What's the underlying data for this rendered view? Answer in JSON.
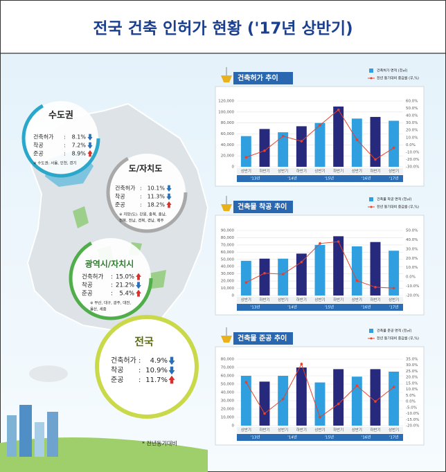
{
  "header": {
    "title": "전국 건축 인허가 현황 ('17년 상반기)"
  },
  "regions": [
    {
      "title": "수도권",
      "color": "#2aa7c9",
      "rows": [
        {
          "label": "건축허가",
          "sep": ":",
          "value": "8.1%",
          "trend": "down"
        },
        {
          "label": "착공",
          "sep": ":",
          "value": "7.2%",
          "trend": "down"
        },
        {
          "label": "준공",
          "sep": ":",
          "value": "8.9%",
          "trend": "up"
        }
      ],
      "note": [
        "※ 수도권: 서울, 인천, 경기"
      ]
    },
    {
      "title": "도/자치도",
      "color": "#a9a9a9",
      "rows": [
        {
          "label": "건축허가",
          "sep": ":",
          "value": "10.1%",
          "trend": "down"
        },
        {
          "label": "착공",
          "sep": ":",
          "value": "11.3%",
          "trend": "down"
        },
        {
          "label": "준공",
          "sep": ":",
          "value": "18.2%",
          "trend": "up"
        }
      ],
      "note": [
        "※ 지방(도): 강원, 충북, 충남,",
        "전북, 전남, 경북, 경남, 제주"
      ]
    },
    {
      "title": "광역시/자치시",
      "color": "#4fae4a",
      "rows": [
        {
          "label": "건축허가",
          "sep": ":",
          "value": "15.0%",
          "trend": "up"
        },
        {
          "label": "착공",
          "sep": ":",
          "value": "21.2%",
          "trend": "down"
        },
        {
          "label": "준공",
          "sep": ":",
          "value": "5.4%",
          "trend": "up"
        }
      ],
      "note": [
        "※ 부산, 대구, 광주, 대전,",
        "울산, 세종"
      ]
    },
    {
      "title": "전국",
      "color": "#c9d94a",
      "rows": [
        {
          "label": "건축허가",
          "sep": ":",
          "value": "4.9%",
          "trend": "down"
        },
        {
          "label": "착공",
          "sep": ":",
          "value": "10.9%",
          "trend": "down"
        },
        {
          "label": "준공",
          "sep": ":",
          "value": "11.7%",
          "trend": "up"
        }
      ],
      "note": []
    }
  ],
  "footnote": "* 전년동기대비",
  "chart_data": [
    {
      "type": "combo",
      "title": "건축허가 추이",
      "categories": [
        "상반기",
        "하반기",
        "상반기",
        "하반기",
        "상반기",
        "하반기",
        "상반기",
        "하반기",
        "상반기"
      ],
      "years": [
        "'13년",
        null,
        "'14년",
        null,
        "'15년",
        null,
        "'16년",
        null,
        "'17년"
      ],
      "series": [
        {
          "name": "건축허가 면적 (천㎡)",
          "type": "bar",
          "colors": [
            "#2f9fe0",
            "#27297d"
          ],
          "values": [
            56000,
            69000,
            63000,
            74000,
            80000,
            110000,
            88000,
            91000,
            84000
          ]
        },
        {
          "name": "전년 동기대비 증감률 (우,%)",
          "type": "line",
          "axis": "y2",
          "color": "#e8402b",
          "values": [
            -17,
            -8,
            12,
            5,
            27,
            48,
            7,
            -20,
            -4
          ]
        }
      ],
      "ylim": [
        0,
        120000
      ],
      "yticks": [
        0,
        {
          "value": 20000,
          "label": "20,000"
        },
        {
          "value": 40000,
          "label": "40,000"
        },
        {
          "value": 60000,
          "label": "60,000"
        },
        {
          "value": 80000,
          "label": "80,000"
        },
        {
          "value": 100000,
          "label": "100,000"
        },
        {
          "value": 120000,
          "label": "120,000"
        }
      ],
      "y2lim": [
        -30,
        60
      ],
      "y2ticks": [
        {
          "value": -30,
          "label": "-30.0%"
        },
        {
          "value": -20,
          "label": "-20.0%"
        },
        {
          "value": -10,
          "label": "-10.0%"
        },
        {
          "value": 0,
          "label": "0.0%"
        },
        {
          "value": 10,
          "label": "10.0%"
        },
        {
          "value": 20,
          "label": "20.0%"
        },
        {
          "value": 30,
          "label": "30.0%"
        },
        {
          "value": 40,
          "label": "40.0%"
        },
        {
          "value": 50,
          "label": "50.0%"
        },
        {
          "value": 60,
          "label": "60.0%"
        }
      ],
      "grid": true
    },
    {
      "type": "combo",
      "title": "건축물 착공 추이",
      "categories": [
        "상반기",
        "하반기",
        "상반기",
        "하반기",
        "상반기",
        "하반기",
        "상반기",
        "하반기",
        "상반기"
      ],
      "years": [
        "'13년",
        null,
        "'14년",
        null,
        "'15년",
        null,
        "'16년",
        null,
        "'17년"
      ],
      "series": [
        {
          "name": "건축물 착공 면적 (천㎡)",
          "type": "bar",
          "colors": [
            "#2f9fe0",
            "#27297d"
          ],
          "values": [
            48000,
            51000,
            51000,
            58000,
            70000,
            82000,
            68000,
            74000,
            62000
          ]
        },
        {
          "name": "전년 동기대비 증감률 (우,%)",
          "type": "line",
          "axis": "y2",
          "color": "#e8402b",
          "values": [
            -6,
            4,
            3,
            16,
            36,
            38,
            -4,
            -11,
            -12
          ]
        }
      ],
      "ylim": [
        0,
        90000
      ],
      "yticks": [
        0,
        {
          "value": 10000,
          "label": "10,000"
        },
        {
          "value": 20000,
          "label": "20,000"
        },
        {
          "value": 30000,
          "label": "30,000"
        },
        {
          "value": 40000,
          "label": "40,000"
        },
        {
          "value": 50000,
          "label": "50,000"
        },
        {
          "value": 60000,
          "label": "60,000"
        },
        {
          "value": 70000,
          "label": "70,000"
        },
        {
          "value": 80000,
          "label": "80,000"
        },
        {
          "value": 90000,
          "label": "90,000"
        }
      ],
      "y2lim": [
        -20,
        50
      ],
      "y2ticks": [
        {
          "value": -20,
          "label": "-20.0%"
        },
        {
          "value": -10,
          "label": "-10.0%"
        },
        {
          "value": 0,
          "label": "0.0%"
        },
        {
          "value": 10,
          "label": "10.0%"
        },
        {
          "value": 20,
          "label": "20.0%"
        },
        {
          "value": 30,
          "label": "30.0%"
        },
        {
          "value": 40,
          "label": "40.0%"
        },
        {
          "value": 50,
          "label": "50.0%"
        }
      ],
      "grid": true
    },
    {
      "type": "combo",
      "title": "건축물 준공 추이",
      "categories": [
        "상반기",
        "하반기",
        "상반기",
        "하반기",
        "상반기",
        "하반기",
        "상반기",
        "하반기",
        "상반기"
      ],
      "years": [
        "'13년",
        null,
        "'14년",
        null,
        "'15년",
        null,
        "'16년",
        null,
        "'17년"
      ],
      "series": [
        {
          "name": "건축물 준공 면적 (천㎡)",
          "type": "bar",
          "colors": [
            "#2f9fe0",
            "#27297d"
          ],
          "values": [
            60000,
            53000,
            60000,
            70000,
            52000,
            68000,
            59000,
            68000,
            65000
          ]
        },
        {
          "name": "전년 동기대비 증감률 (우,%)",
          "type": "line",
          "axis": "y2",
          "color": "#e8402b",
          "values": [
            16,
            -10,
            2,
            31,
            -13,
            -2,
            13,
            0,
            12
          ]
        }
      ],
      "ylim": [
        0,
        80000
      ],
      "yticks": [
        0,
        {
          "value": 10000,
          "label": "10,000"
        },
        {
          "value": 20000,
          "label": "20,000"
        },
        {
          "value": 30000,
          "label": "30,000"
        },
        {
          "value": 40000,
          "label": "40,000"
        },
        {
          "value": 50000,
          "label": "50,000"
        },
        {
          "value": 60000,
          "label": "60,000"
        },
        {
          "value": 70000,
          "label": "70,000"
        },
        {
          "value": 80000,
          "label": "80,000"
        }
      ],
      "y2lim": [
        -20,
        35
      ],
      "y2ticks": [
        {
          "value": -20,
          "label": "-20.0%"
        },
        {
          "value": -15,
          "label": "-15.0%"
        },
        {
          "value": -10,
          "label": "-10.0%"
        },
        {
          "value": -5,
          "label": "-5.0%"
        },
        {
          "value": 0,
          "label": "0.0%"
        },
        {
          "value": 5,
          "label": "5.0%"
        },
        {
          "value": 10,
          "label": "10.0%"
        },
        {
          "value": 15,
          "label": "15.0%"
        },
        {
          "value": 20,
          "label": "20.0%"
        },
        {
          "value": 25,
          "label": "25.0%"
        },
        {
          "value": 30,
          "label": "30.0%"
        },
        {
          "value": 35,
          "label": "35.0%"
        }
      ],
      "grid": true
    }
  ]
}
